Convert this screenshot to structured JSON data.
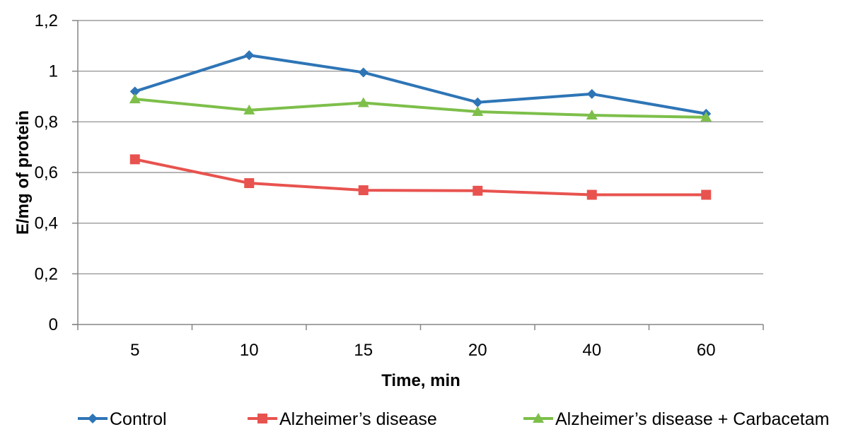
{
  "chart_data": {
    "type": "line",
    "title": "",
    "xlabel": "Time, min",
    "ylabel": "E/mg of protein",
    "categories": [
      "5",
      "10",
      "15",
      "20",
      "40",
      "60"
    ],
    "ylim": [
      0,
      1.2
    ],
    "yticks": [
      "0",
      "0,2",
      "0,4",
      "0,6",
      "0,8",
      "1",
      "1,2"
    ],
    "ytick_values": [
      0,
      0.2,
      0.4,
      0.6,
      0.8,
      1.0,
      1.2
    ],
    "grid": "horizontal",
    "legend": "bottom",
    "series": [
      {
        "name": "Control",
        "color": "#2E75B6",
        "marker": "diamond",
        "values": [
          0.92,
          1.063,
          0.995,
          0.877,
          0.91,
          0.832
        ]
      },
      {
        "name": "Alzheimer’s disease",
        "color": "#E8534F",
        "marker": "square",
        "values": [
          0.652,
          0.558,
          0.53,
          0.528,
          0.512,
          0.512
        ]
      },
      {
        "name": "Alzheimer’s disease + Carbacetam",
        "color": "#7DBF4A",
        "marker": "triangle",
        "values": [
          0.89,
          0.846,
          0.875,
          0.84,
          0.826,
          0.818
        ]
      }
    ]
  }
}
